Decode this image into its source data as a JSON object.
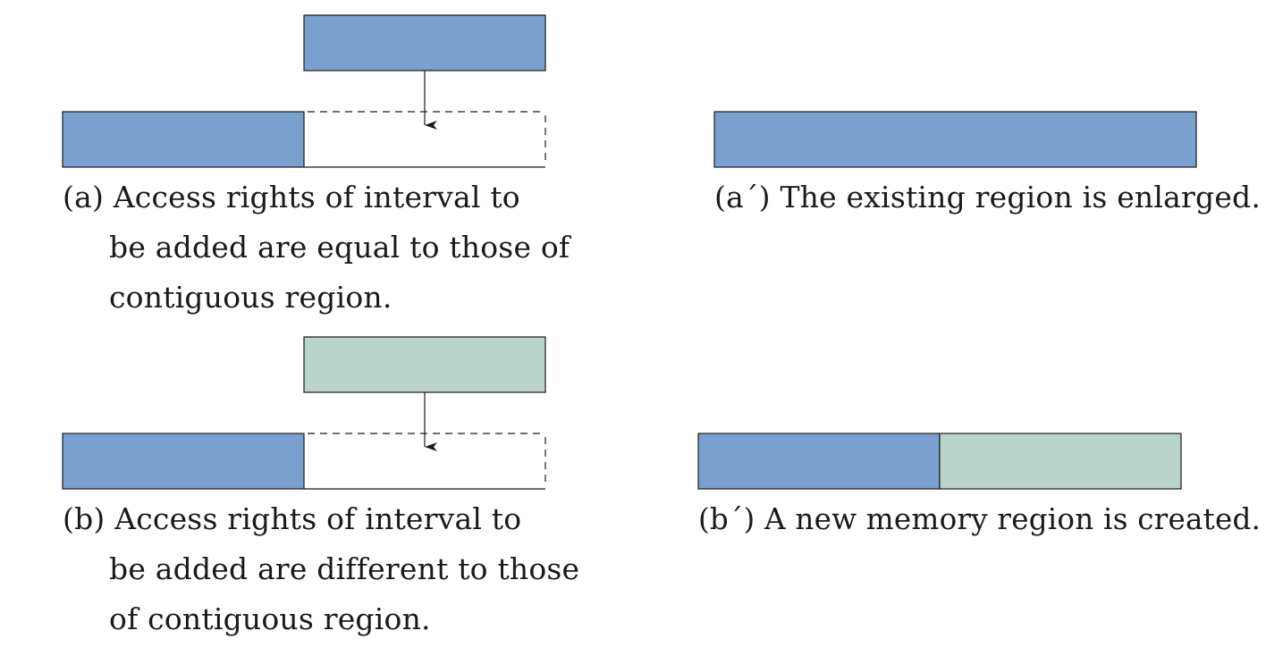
{
  "colors": {
    "region_blue": "#7aa0cf",
    "region_green": "#b8d4cb",
    "stroke": "#1a1a1a"
  },
  "panel_a": {
    "tag": "(a)",
    "caption_lines": [
      "Access rights of interval to",
      "be added are equal to those of",
      "contiguous region."
    ]
  },
  "panel_a_prime": {
    "tag": "(a´)",
    "caption": "The existing region is enlarged."
  },
  "panel_b": {
    "tag": "(b)",
    "caption_lines": [
      "Access rights of interval to",
      "be added are different to those",
      "of contiguous region."
    ]
  },
  "panel_b_prime": {
    "tag": "(b´)",
    "caption": "A new memory region is created."
  }
}
